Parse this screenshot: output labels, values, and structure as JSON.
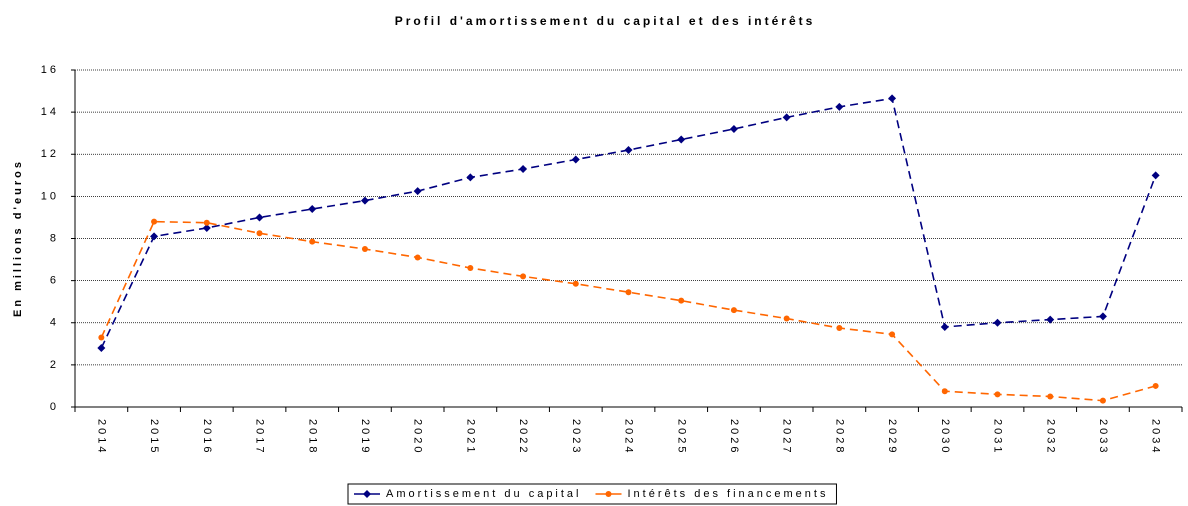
{
  "chart_data": {
    "type": "line",
    "title": "Profil d'amortissement du capital et des intérêts",
    "y_label": "En millions d'euros",
    "categories": [
      "2014",
      "2015",
      "2016",
      "2017",
      "2018",
      "2019",
      "2020",
      "2021",
      "2022",
      "2023",
      "2024",
      "2025",
      "2026",
      "2027",
      "2028",
      "2029",
      "2030",
      "2031",
      "2032",
      "2033",
      "2034"
    ],
    "series": [
      {
        "name": "Amortissement du capital",
        "color": "#000080",
        "marker": "diamond",
        "values": [
          2.8,
          8.1,
          8.5,
          9.0,
          9.4,
          9.8,
          10.25,
          10.9,
          11.3,
          11.75,
          12.2,
          12.7,
          13.2,
          13.75,
          14.25,
          14.65,
          3.8,
          4.0,
          4.15,
          4.3,
          11.0
        ]
      },
      {
        "name": "Intérêts des financements",
        "color": "#ff6600",
        "marker": "circle",
        "values": [
          3.3,
          8.8,
          8.75,
          8.25,
          7.85,
          7.5,
          7.1,
          6.6,
          6.2,
          5.85,
          5.45,
          5.05,
          4.6,
          4.2,
          3.75,
          3.45,
          0.75,
          0.6,
          0.5,
          0.3,
          1.0
        ]
      }
    ],
    "ylim": [
      0,
      16
    ],
    "yticks": [
      0,
      2,
      4,
      6,
      8,
      10,
      12,
      14,
      16
    ],
    "grid": true,
    "legend": "bottom"
  }
}
